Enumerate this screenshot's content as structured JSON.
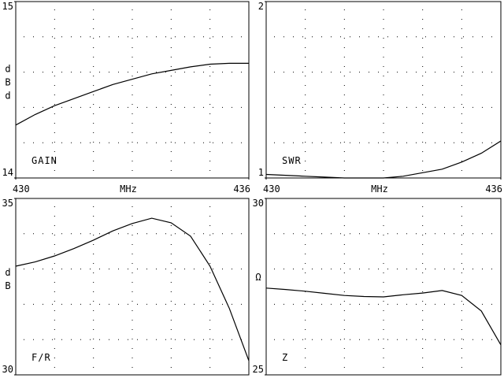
{
  "chart_data": [
    {
      "type": "line",
      "label": "GAIN",
      "ylabel": "dBd",
      "xlabel": "MHz",
      "x": [
        430,
        430.5,
        431,
        431.5,
        432,
        432.5,
        433,
        433.5,
        434,
        434.5,
        435,
        435.5,
        436
      ],
      "values": [
        14.3,
        14.36,
        14.41,
        14.45,
        14.49,
        14.53,
        14.56,
        14.59,
        14.61,
        14.63,
        14.645,
        14.65,
        14.65
      ],
      "xlim": [
        430,
        436
      ],
      "ylim": [
        14,
        15
      ],
      "xticks": [
        430,
        436
      ],
      "yticks": [
        15,
        14
      ],
      "grid_divisions": [
        6,
        5
      ],
      "color": "#000000"
    },
    {
      "type": "line",
      "label": "SWR",
      "xlabel": "MHz",
      "x": [
        430,
        430.5,
        431,
        431.5,
        432,
        432.5,
        433,
        433.5,
        434,
        434.5,
        435,
        435.5,
        436
      ],
      "values": [
        1.02,
        1.015,
        1.01,
        1.005,
        1.0,
        1.0,
        1.0,
        1.01,
        1.03,
        1.05,
        1.09,
        1.14,
        1.21
      ],
      "xlim": [
        430,
        436
      ],
      "ylim": [
        1,
        2
      ],
      "xticks": [
        430,
        436
      ],
      "yticks": [
        2,
        1
      ],
      "grid_divisions": [
        6,
        5
      ],
      "color": "#000000"
    },
    {
      "type": "line",
      "label": "F/R",
      "ylabel": "dB",
      "x": [
        430,
        430.5,
        431,
        431.5,
        432,
        432.5,
        433,
        433.5,
        434,
        434.5,
        435,
        435.5,
        436
      ],
      "values": [
        33.08,
        33.2,
        33.37,
        33.58,
        33.82,
        34.08,
        34.29,
        34.44,
        34.31,
        33.93,
        33.08,
        31.88,
        30.4
      ],
      "xlim": [
        430,
        436
      ],
      "ylim": [
        30,
        35
      ],
      "yticks": [
        35,
        30
      ],
      "grid_divisions": [
        6,
        5
      ],
      "color": "#000000"
    },
    {
      "type": "line",
      "label": "Z",
      "ylabel": "Ω",
      "x": [
        430,
        430.5,
        431,
        431.5,
        432,
        432.5,
        433,
        433.5,
        434,
        434.5,
        435,
        435.5,
        436
      ],
      "values": [
        27.46,
        27.42,
        27.37,
        27.31,
        27.25,
        27.22,
        27.21,
        27.27,
        27.32,
        27.39,
        27.25,
        26.81,
        25.85
      ],
      "xlim": [
        430,
        436
      ],
      "ylim": [
        25,
        30
      ],
      "yticks": [
        30,
        25
      ],
      "grid_divisions": [
        6,
        5
      ],
      "color": "#000000"
    }
  ]
}
